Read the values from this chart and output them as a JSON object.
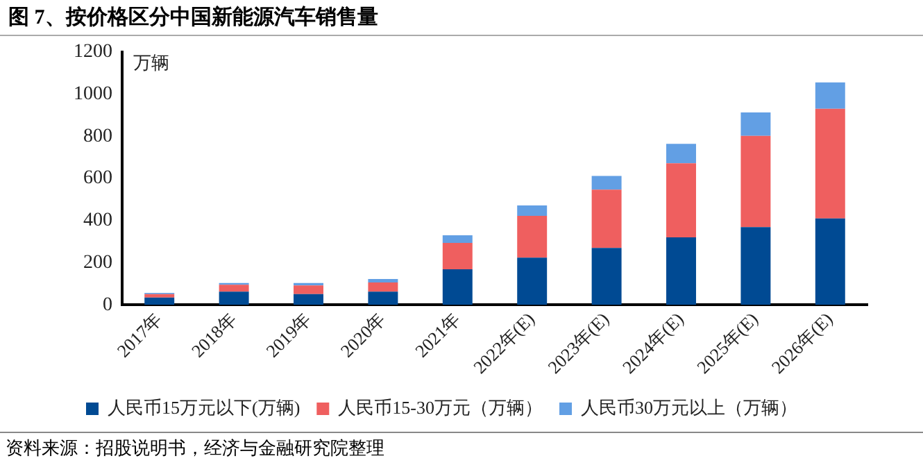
{
  "chart_data": {
    "type": "bar",
    "title": "图 7、按价格区分中国新能源汽车销售量",
    "ylabel": "万辆",
    "categories": [
      "2017年",
      "2018年",
      "2019年",
      "2020年",
      "2021年",
      "2022年(E)",
      "2023年(E)",
      "2024年(E)",
      "2025年(E)",
      "2026年(E)"
    ],
    "series": [
      {
        "name": "人民币15万元以下(万辆)",
        "color": "#004a93",
        "values": [
          35,
          63,
          51,
          63,
          169,
          224,
          270,
          320,
          369,
          410
        ]
      },
      {
        "name": "人民币15-30万元（万辆）",
        "color": "#ef5f5f",
        "values": [
          16,
          33,
          41,
          43,
          125,
          198,
          277,
          352,
          433,
          520
        ]
      },
      {
        "name": "人民币30万元以上（万辆）",
        "color": "#629fe4",
        "values": [
          6,
          8,
          12,
          17,
          36,
          50,
          65,
          92,
          111,
          125
        ]
      }
    ],
    "stacked": true,
    "ylim": [
      0,
      1200
    ],
    "yticks": [
      0,
      200,
      400,
      600,
      800,
      1000,
      1200
    ],
    "grid": false,
    "legend": "bottom",
    "annotations": [
      "资料来源：招股说明书，经济与金融研究院整理"
    ]
  }
}
